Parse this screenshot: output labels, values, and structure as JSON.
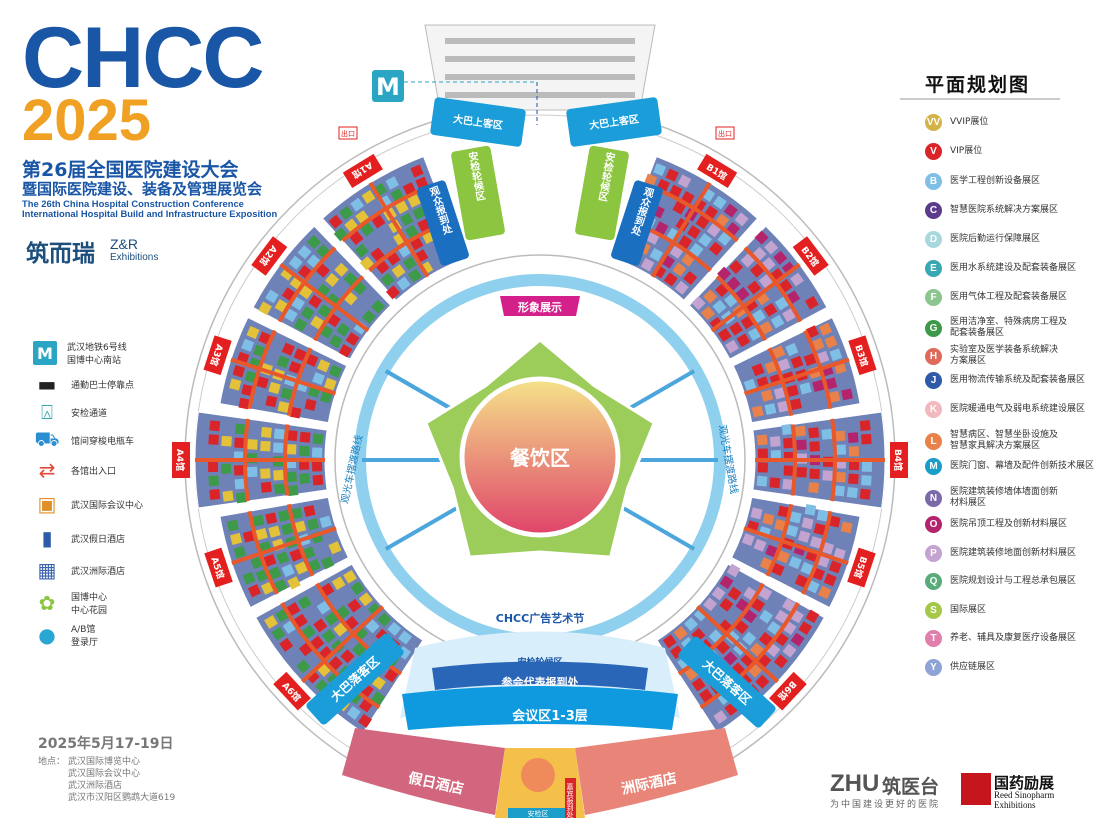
{
  "header": {
    "logo": "CHCC",
    "year": "2025",
    "title_cn_1": "第26届全国医院建设大会",
    "title_cn_2": "暨国际医院建设、装备及管理展览会",
    "title_en_1": "The 26th China Hospital Construction Conference",
    "title_en_2": "International Hospital Build and Infrastructure Exposition",
    "organizer_cn": "筑而瑞",
    "organizer_en_1": "Z&R",
    "organizer_en_2": "Exhibitions"
  },
  "left_legend": [
    {
      "icon": "metro-icon",
      "label": "武汉地铁6号线\n国博中心南站"
    },
    {
      "icon": "bus-icon",
      "label": "通勤巴士停靠点"
    },
    {
      "icon": "security-gate-icon",
      "label": "安检通道"
    },
    {
      "icon": "shuttle-cart-icon",
      "label": "馆间穿梭电瓶车"
    },
    {
      "icon": "entrance-icon",
      "label": "各馆出入口"
    },
    {
      "icon": "conference-center-icon",
      "label": "武汉国际会议中心"
    },
    {
      "icon": "holiday-hotel-icon",
      "label": "武汉假日酒店"
    },
    {
      "icon": "intercontinental-hotel-icon",
      "label": "武汉洲际酒店"
    },
    {
      "icon": "garden-icon",
      "label": "国博中心\n中心花园"
    },
    {
      "icon": "registration-hall-icon",
      "label": "A/B馆\n登录厅"
    }
  ],
  "event": {
    "date": "2025年5月17-19日",
    "venue_label": "地点：",
    "venues": [
      "武汉国际博览中心",
      "武汉国际会议中心",
      "武汉洲际酒店",
      "武汉市汉阳区鹦鹉大道619"
    ]
  },
  "legend": {
    "title": "平面规划图",
    "items": [
      {
        "code": "VV",
        "label": "VVIP展位",
        "color": "#d4b24a"
      },
      {
        "code": "V",
        "label": "VIP展位",
        "color": "#d9252a"
      },
      {
        "code": "B",
        "label": "医学工程创新设备展区",
        "color": "#7fbfe6"
      },
      {
        "code": "C",
        "label": "智慧医院系统解决方案展区",
        "color": "#5a3b8c"
      },
      {
        "code": "D",
        "label": "医院后勤运行保障展区",
        "color": "#a8d8de"
      },
      {
        "code": "E",
        "label": "医用水系统建设及配套装备展区",
        "color": "#3aa7b5"
      },
      {
        "code": "F",
        "label": "医用气体工程及配套装备展区",
        "color": "#8cc590"
      },
      {
        "code": "G",
        "label": "医用洁净室、特殊病房工程及\n配套装备展区",
        "color": "#3c9a48"
      },
      {
        "code": "H",
        "label": "实验室及医学装备系统解决\n方案展区",
        "color": "#e06a5a"
      },
      {
        "code": "J",
        "label": "医用物流传输系统及配套装备展区",
        "color": "#2d5ba8"
      },
      {
        "code": "K",
        "label": "医院暖通电气及弱电系统建设展区",
        "color": "#f1b8bd"
      },
      {
        "code": "L",
        "label": "智慧病区、智慧坐卧设施及\n智慧家具解决方案展区",
        "color": "#e8814a"
      },
      {
        "code": "M",
        "label": "医院门窗、幕墙及配件创新技术展区",
        "color": "#1a9dc9"
      },
      {
        "code": "N",
        "label": "医院建筑装修墙体墙面创新\n材料展区",
        "color": "#7b6aa8"
      },
      {
        "code": "O",
        "label": "医院吊顶工程及创新材料展区",
        "color": "#b3246c"
      },
      {
        "code": "P",
        "label": "医院建筑装修地面创新材料展区",
        "color": "#c3a3d0"
      },
      {
        "code": "Q",
        "label": "医院规划设计与工程总承包展区",
        "color": "#5aab7a"
      },
      {
        "code": "S",
        "label": "国际展区",
        "color": "#a6c84a"
      },
      {
        "code": "T",
        "label": "养老、辅具及康复医疗设备展区",
        "color": "#e07fab"
      },
      {
        "code": "Y",
        "label": "供应链展区",
        "color": "#8fa3d6"
      }
    ]
  },
  "map": {
    "halls_a": [
      "A1馆",
      "A2馆",
      "A3馆",
      "A4馆",
      "A5馆",
      "A6馆"
    ],
    "halls_b": [
      "B1馆",
      "B2馆",
      "B3馆",
      "B4馆",
      "B5馆",
      "B6馆"
    ],
    "bus_pickup": "大巴上客区",
    "bus_dropoff": "大巴落客区",
    "security_wait": "安检轮候区",
    "registration_visitor": "观众报到处",
    "registration_exhibitor": "展商",
    "image_display": "形象展示",
    "dining": "餐饮区",
    "shuttle_route": "观光车摆渡路线",
    "ad_festival": "CHCC广告艺术节",
    "delegate_registration": "参会代表报到处",
    "conference": "会议区1-3层",
    "holiday_hotel": "假日酒店",
    "intercontinental_hotel": "洲际酒店",
    "security_area": "安检区",
    "vip_registration": "嘉宾报到处",
    "exit_sign": "出口",
    "colors": {
      "hall_base": "#6f82b8",
      "aisle": "#e8582a",
      "hall_label": "#e3201f",
      "ring": "#8fd0ee",
      "garden": "#9ccc5a"
    }
  },
  "footer": {
    "zhu_logo": "ZHU",
    "zhu_cn": "筑医台",
    "zhu_slogan": "为中国建设更好的医院",
    "reed_cn": "国药励展",
    "reed_en_1": "Reed Sinopharm",
    "reed_en_2": "Exhibitions"
  }
}
